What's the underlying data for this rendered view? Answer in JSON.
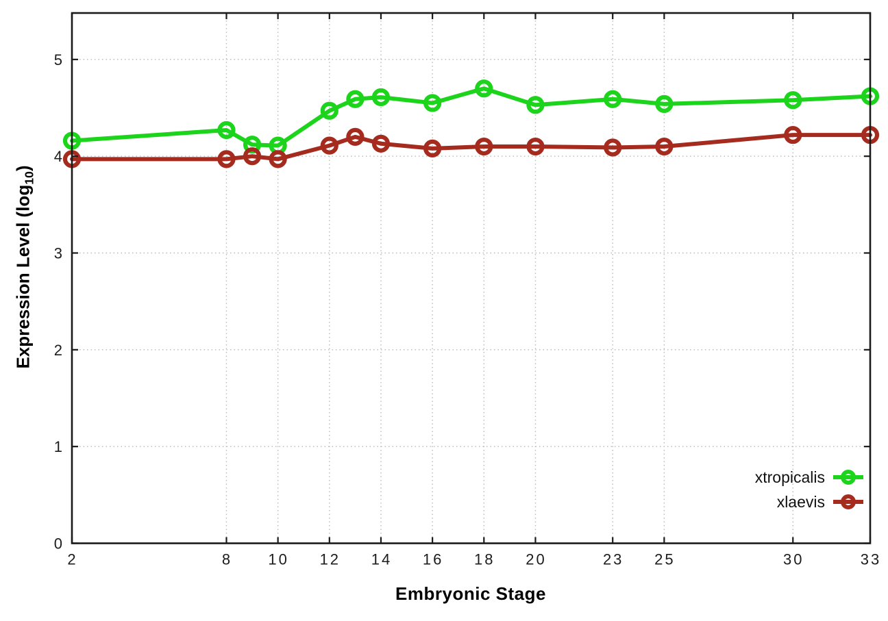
{
  "chart_data": {
    "type": "line",
    "title": "",
    "xlabel": "Embryonic Stage",
    "ylabel": "Expression Level (log10)",
    "ylabel_parts": {
      "prefix": "Expression Level (log",
      "sub": "10",
      "suffix": ")"
    },
    "x": [
      2,
      8,
      9,
      10,
      12,
      13,
      14,
      16,
      18,
      20,
      23,
      25,
      30,
      33
    ],
    "series": [
      {
        "name": "xtropicalis",
        "color": "#1bd41b",
        "values": [
          4.16,
          4.27,
          4.12,
          4.11,
          4.47,
          4.59,
          4.61,
          4.55,
          4.7,
          4.53,
          4.59,
          4.54,
          4.58,
          4.62
        ]
      },
      {
        "name": "xlaevis",
        "color": "#a62b1f",
        "values": [
          3.97,
          3.97,
          4.0,
          3.97,
          4.11,
          4.2,
          4.13,
          4.08,
          4.1,
          4.1,
          4.09,
          4.1,
          4.22,
          4.22
        ]
      }
    ],
    "xticks": [
      2,
      8,
      10,
      12,
      14,
      16,
      18,
      20,
      23,
      25,
      30,
      33
    ],
    "yticks": [
      0,
      1,
      2,
      3,
      4,
      5
    ],
    "xlim": [
      2,
      33
    ],
    "ylim": [
      0,
      5.48
    ],
    "grid": true,
    "legend_position": "inside-bottom-right",
    "marker": "open-circle",
    "grid_color": "#b8b8b8",
    "border_color": "#1a1a1a",
    "tick_label_color": "#1c1c1c"
  }
}
